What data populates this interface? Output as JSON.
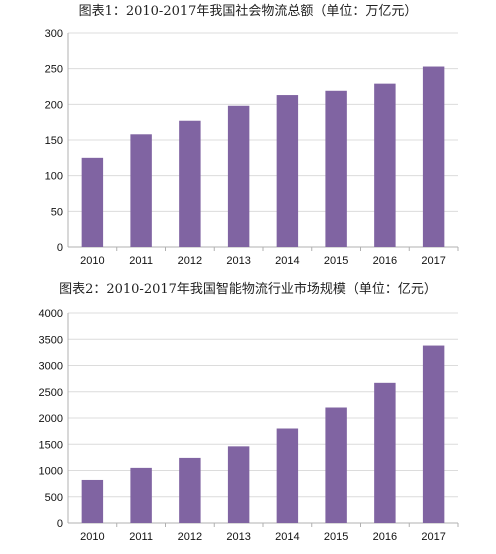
{
  "chart_data": [
    {
      "type": "bar",
      "title": "图表1：2010-2017年我国社会物流总额（单位：万亿元）",
      "categories": [
        "2010",
        "2011",
        "2012",
        "2013",
        "2014",
        "2015",
        "2016",
        "2017"
      ],
      "values": [
        125,
        158,
        177,
        198,
        213,
        219,
        229,
        253
      ],
      "ylim": [
        0,
        300
      ],
      "yticks": [
        "0",
        "50",
        "100",
        "150",
        "200",
        "250",
        "300"
      ],
      "xlabel": "",
      "ylabel": "",
      "grid": true,
      "bar_color": "#8064a2"
    },
    {
      "type": "bar",
      "title": "图表2：2010-2017年我国智能物流行业市场规模（单位：亿元）",
      "categories": [
        "2010",
        "2011",
        "2012",
        "2013",
        "2014",
        "2015",
        "2016",
        "2017"
      ],
      "values": [
        820,
        1050,
        1240,
        1460,
        1800,
        2200,
        2670,
        3380
      ],
      "ylim": [
        0,
        4000
      ],
      "yticks": [
        "0",
        "500",
        "1000",
        "1500",
        "2000",
        "2500",
        "3000",
        "3500",
        "4000"
      ],
      "xlabel": "",
      "ylabel": "",
      "grid": true,
      "bar_color": "#8064a2"
    }
  ]
}
